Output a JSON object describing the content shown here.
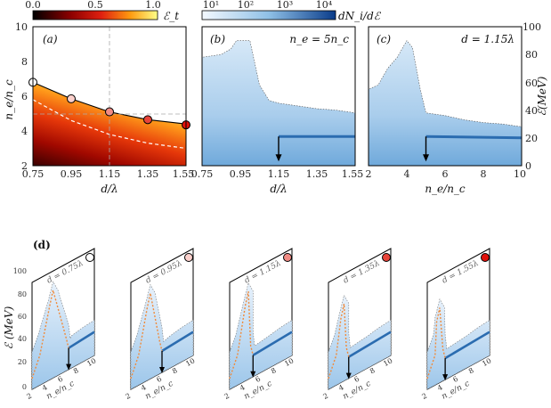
{
  "colorbars": {
    "et": {
      "ticks": [
        "0.0",
        "0.5",
        "1.0"
      ],
      "label": "ℰ_t"
    },
    "dn": {
      "ticks": [
        "10¹",
        "10²",
        "10³",
        "10⁴"
      ],
      "label": "dN_i/dℰ"
    }
  },
  "panels": {
    "a": {
      "tag": "(a)",
      "xlabel": "d/λ",
      "ylabel": "n_e/n_c",
      "xticks": [
        "0.75",
        "0.95",
        "1.15",
        "1.35",
        "1.55"
      ],
      "yticks": [
        "2",
        "4",
        "6",
        "8",
        "10"
      ]
    },
    "b": {
      "tag": "(b)",
      "note": "n_e = 5n_c",
      "xlabel": "d/λ",
      "xticks": [
        "0.75",
        "0.95",
        "1.15",
        "1.35",
        "1.55"
      ]
    },
    "c": {
      "tag": "(c)",
      "note": "d = 1.15λ",
      "xlabel": "n_e/n_c",
      "xticks": [
        "2",
        "4",
        "6",
        "8",
        "10"
      ],
      "ylabel": "ℰ(MeV)",
      "yticks": [
        "0",
        "20",
        "40",
        "60",
        "80",
        "100"
      ]
    },
    "d": {
      "tag": "(d)",
      "ylabel": "ℰ (MeV)",
      "yticks": [
        "0",
        "20",
        "40",
        "60",
        "80",
        "100"
      ],
      "xlabel": "n_e/n_c",
      "xticks": [
        "2",
        "4",
        "6",
        "8",
        "10"
      ],
      "labels": [
        "d = 0.75λ",
        "d = 0.95λ",
        "d = 1.15λ",
        "d = 1.35λ",
        "d = 1.55λ"
      ]
    }
  },
  "chart_data": [
    {
      "type": "heatmap",
      "title": "(a)",
      "xlabel": "d/λ",
      "ylabel": "n_e/n_c",
      "xlim": [
        0.75,
        1.55
      ],
      "ylim": [
        2,
        10
      ],
      "boundary_markers": {
        "x": [
          0.75,
          0.95,
          1.15,
          1.35,
          1.55
        ],
        "y": [
          6.8,
          5.85,
          5.1,
          4.65,
          4.4
        ]
      },
      "markers": {
        "x": [
          0.75,
          0.95,
          1.15,
          1.35,
          1.55
        ],
        "y": [
          6.8,
          5.85,
          5.1,
          4.65,
          4.35
        ]
      },
      "dashed_curve": {
        "x": [
          0.75,
          0.95,
          1.15,
          1.35,
          1.55
        ],
        "y": [
          5.8,
          4.6,
          3.8,
          3.3,
          3.0
        ]
      },
      "guides": {
        "x": 1.15,
        "y": 5.0
      },
      "colorbar": {
        "label": "ℰ_t",
        "range": [
          0,
          1
        ]
      }
    },
    {
      "type": "heatmap",
      "title": "(b) n_e = 5n_c",
      "xlabel": "d/λ",
      "xlim": [
        0.75,
        1.55
      ],
      "ylim": [
        0,
        100
      ],
      "cutoff_energy": {
        "x": [
          0.75,
          0.85,
          0.9,
          0.93,
          1.0,
          1.05,
          1.1,
          1.15,
          1.25,
          1.35,
          1.45,
          1.55
        ],
        "y": [
          78,
          80,
          84,
          90,
          90,
          58,
          47,
          45,
          43,
          41,
          40,
          38
        ]
      },
      "peak_energy": {
        "x": [
          1.15,
          1.55
        ],
        "y": [
          21,
          21
        ]
      },
      "arrow_at": 1.15,
      "colorbar": {
        "label": "dN_i/dℰ",
        "range": [
          10,
          10000
        ],
        "scale": "log"
      }
    },
    {
      "type": "heatmap",
      "title": "(c) d = 1.15λ",
      "xlabel": "n_e/n_c",
      "ylabel": "ℰ(MeV)",
      "xlim": [
        2,
        10
      ],
      "ylim": [
        0,
        100
      ],
      "cutoff_energy": {
        "x": [
          2,
          2.5,
          3,
          3.5,
          4,
          4.3,
          4.7,
          5,
          6,
          7,
          8,
          9,
          10
        ],
        "y": [
          55,
          58,
          70,
          78,
          90,
          85,
          55,
          38,
          36,
          33,
          31,
          30,
          28
        ]
      },
      "peak_energy": {
        "x": [
          5,
          10
        ],
        "y": [
          21,
          20
        ]
      },
      "arrow_at": 5
    },
    {
      "type": "heatmap",
      "title": "(d)",
      "xlabel": "n_e/n_c",
      "ylabel": "ℰ (MeV)",
      "xlim": [
        2,
        10
      ],
      "ylim": [
        0,
        100
      ],
      "series": [
        {
          "name": "d = 0.75λ",
          "peak": [
            4.7,
            90
          ],
          "arrow_at": 6.7
        },
        {
          "name": "d = 0.95λ",
          "peak": [
            4.5,
            88
          ],
          "arrow_at": 6.0
        },
        {
          "name": "d = 1.15λ",
          "peak": [
            4.4,
            90
          ],
          "arrow_at": 5.0
        },
        {
          "name": "d = 1.35λ",
          "peak": [
            4.0,
            80
          ],
          "arrow_at": 4.6
        },
        {
          "name": "d = 1.55λ",
          "peak": [
            3.6,
            78
          ],
          "arrow_at": 4.3
        }
      ]
    }
  ]
}
